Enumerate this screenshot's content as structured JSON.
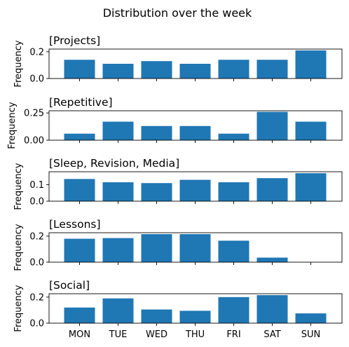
{
  "chart_data": {
    "type": "bar",
    "title": "Distribution over the week",
    "categories": [
      "MON",
      "TUE",
      "WED",
      "THU",
      "FRI",
      "SAT",
      "SUN"
    ],
    "ylabel": "Frequency",
    "bar_color": "#1f77b4",
    "panels": [
      {
        "title": "[Projects]",
        "values": [
          0.14,
          0.11,
          0.13,
          0.11,
          0.14,
          0.14,
          0.21
        ],
        "ylim": [
          0,
          0.22
        ],
        "yticks": [
          0.0,
          0.2
        ],
        "ytick_labels": [
          "0.0",
          "0.2"
        ]
      },
      {
        "title": "[Repetitive]",
        "values": [
          0.06,
          0.17,
          0.13,
          0.13,
          0.06,
          0.26,
          0.17
        ],
        "ylim": [
          0,
          0.27
        ],
        "yticks": [
          0.0,
          0.25
        ],
        "ytick_labels": [
          "0.00",
          "0.25"
        ]
      },
      {
        "title": "[Sleep, Revision, Media]",
        "values": [
          0.135,
          0.115,
          0.11,
          0.13,
          0.115,
          0.14,
          0.17
        ],
        "ylim": [
          0,
          0.179
        ],
        "yticks": [
          0.0,
          0.1
        ],
        "ytick_labels": [
          "0.0",
          "0.1"
        ]
      },
      {
        "title": "[Lessons]",
        "values": [
          0.18,
          0.185,
          0.215,
          0.215,
          0.165,
          0.035,
          0.0
        ],
        "ylim": [
          0,
          0.226
        ],
        "yticks": [
          0.0,
          0.2
        ],
        "ytick_labels": [
          "0.0",
          "0.2"
        ]
      },
      {
        "title": "[Social]",
        "values": [
          0.12,
          0.19,
          0.105,
          0.095,
          0.2,
          0.215,
          0.075
        ],
        "ylim": [
          0,
          0.226
        ],
        "yticks": [
          0.0,
          0.2
        ],
        "ytick_labels": [
          "0.0",
          "0.2"
        ]
      }
    ]
  }
}
